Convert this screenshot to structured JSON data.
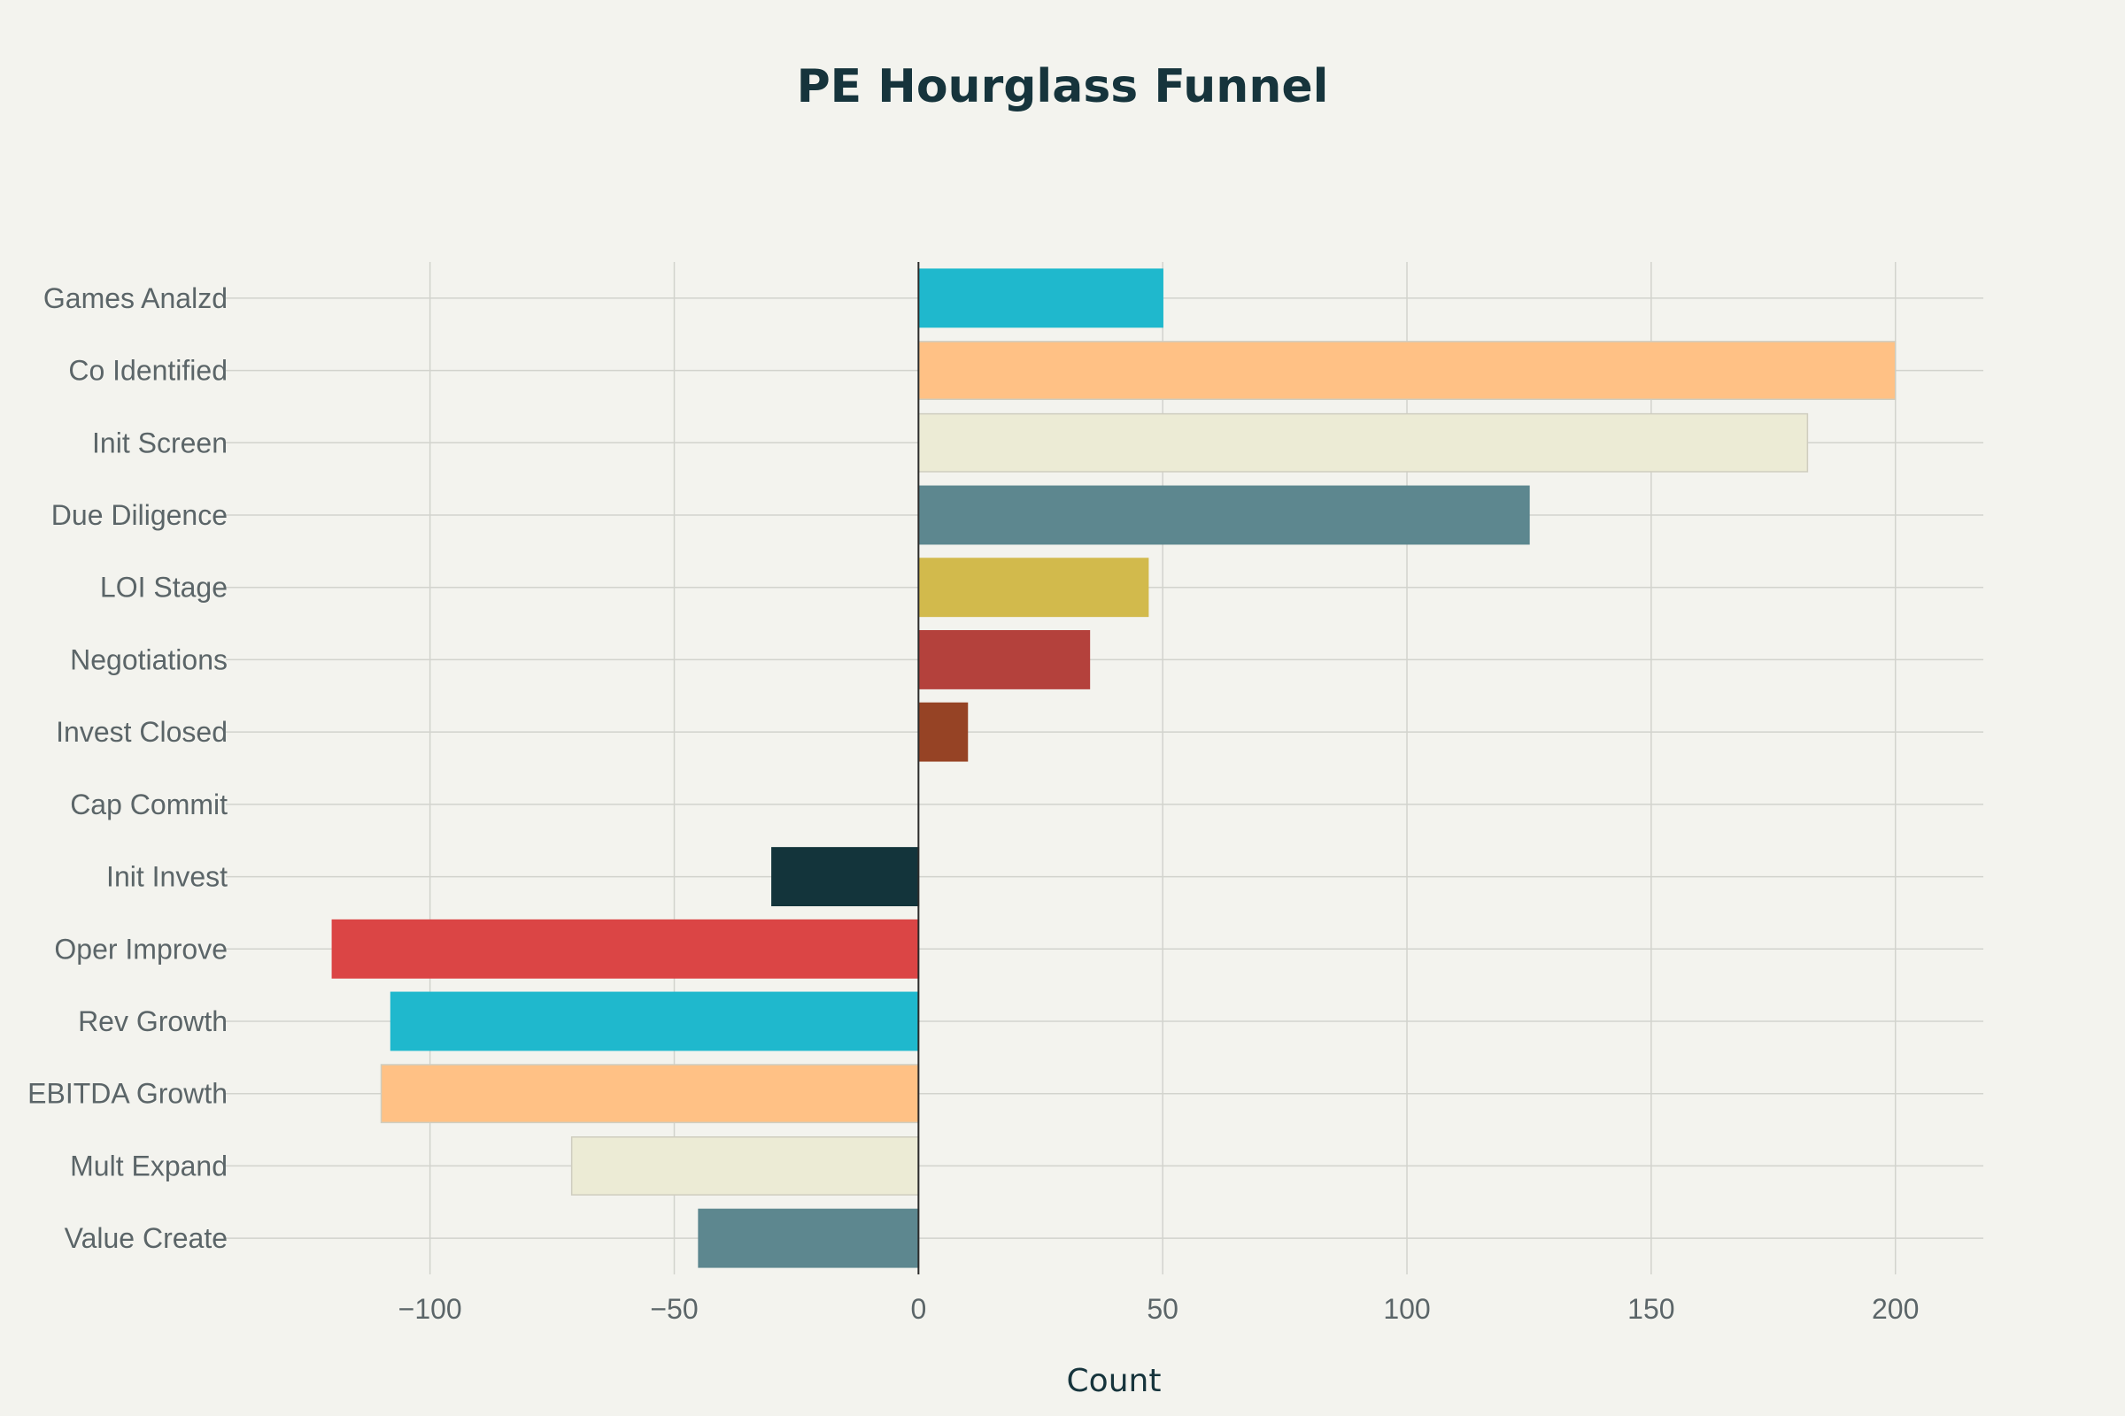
{
  "chart_data": {
    "type": "bar",
    "orientation": "horizontal",
    "title": "PE Hourglass Funnel",
    "xlabel": "Count",
    "ylabel": "",
    "xlim": [
      -140,
      218
    ],
    "x_ticks": [
      -100,
      -50,
      0,
      50,
      100,
      150,
      200
    ],
    "x_tick_labels": [
      "−100",
      "−50",
      "0",
      "50",
      "100",
      "150",
      "200"
    ],
    "grid": true,
    "legend": false,
    "categories": [
      "Games Analzd",
      "Co Identified",
      "Init Screen",
      "Due Diligence",
      "LOI Stage",
      "Negotiations",
      "Invest Closed",
      "Cap Commit",
      "Init Invest",
      "Oper Improve",
      "Rev Growth",
      "EBITDA Growth",
      "Mult Expand",
      "Value Create"
    ],
    "values": [
      50,
      200,
      182,
      125,
      47,
      35,
      10,
      0,
      -30,
      -120,
      -108,
      -110,
      -71,
      -45
    ],
    "colors": [
      "#1fb8cd",
      "#ffc185",
      "#eceBd5",
      "#5d878f",
      "#d2ba4c",
      "#b4413c",
      "#964325",
      "#944454",
      "#13343b",
      "#db4545",
      "#1fb8cd",
      "#ffc185",
      "#eceBd5",
      "#5d878f"
    ]
  }
}
